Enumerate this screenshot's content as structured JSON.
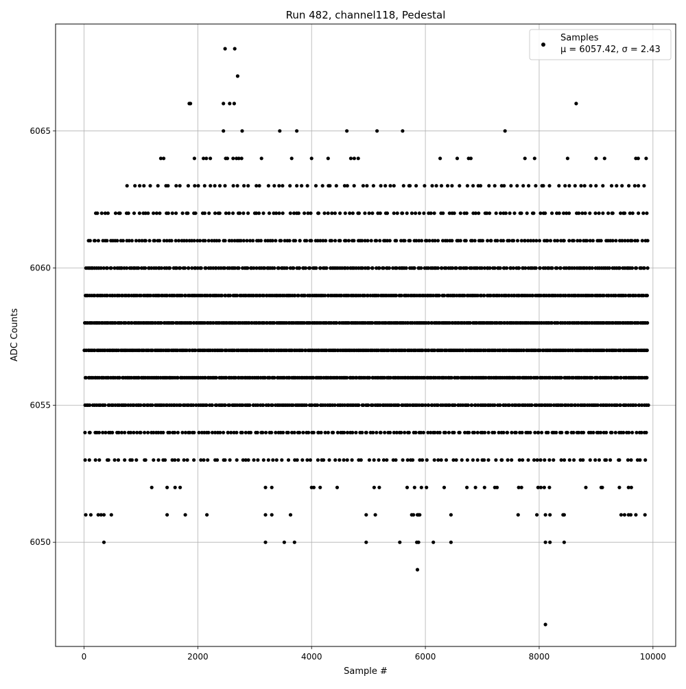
{
  "chart_data": {
    "type": "scatter",
    "title": "Run 482, channel118, Pedestal",
    "xlabel": "Sample #",
    "ylabel": "ADC Counts",
    "xlim": [
      -500,
      10400
    ],
    "ylim": [
      6046.2,
      6068.9
    ],
    "x_ticks": [
      0,
      2000,
      4000,
      6000,
      8000,
      10000
    ],
    "y_ticks": [
      6050,
      6055,
      6060,
      6065
    ],
    "grid": true,
    "legend": {
      "placement": "top-right",
      "entries": [
        {
          "label": "Samples",
          "sublabel": "μ = 6057.42, σ = 2.43"
        }
      ]
    },
    "marker_color": "#000000",
    "series": [
      {
        "name": "Samples",
        "dense_levels": [
          {
            "y": 6053,
            "x_range": [
              0,
              9900
            ],
            "count": 120
          },
          {
            "y": 6054,
            "x_range": [
              0,
              9920
            ],
            "count": 200
          },
          {
            "y": 6055,
            "x_range": [
              0,
              9920
            ],
            "count": 300
          },
          {
            "y": 6056,
            "x_range": [
              0,
              9920
            ],
            "count": 350
          },
          {
            "y": 6057,
            "x_range": [
              0,
              9920
            ],
            "count": 380
          },
          {
            "y": 6058,
            "x_range": [
              0,
              9920
            ],
            "count": 380
          },
          {
            "y": 6059,
            "x_range": [
              0,
              9920
            ],
            "count": 340
          },
          {
            "y": 6060,
            "x_range": [
              0,
              9920
            ],
            "count": 270
          },
          {
            "y": 6061,
            "x_range": [
              40,
              9920
            ],
            "count": 200
          },
          {
            "y": 6062,
            "x_range": [
              140,
              9920
            ],
            "count": 140
          },
          {
            "y": 6063,
            "x_range": [
              740,
              9900
            ],
            "count": 90
          }
        ],
        "sparse_points": [
          [
            2480,
            6068
          ],
          [
            2650,
            6068
          ],
          [
            2700,
            6067
          ],
          [
            1850,
            6066
          ],
          [
            1870,
            6066
          ],
          [
            2450,
            6066
          ],
          [
            2560,
            6066
          ],
          [
            2640,
            6066
          ],
          [
            8650,
            6066
          ],
          [
            2450,
            6065
          ],
          [
            2780,
            6065
          ],
          [
            3440,
            6065
          ],
          [
            3740,
            6065
          ],
          [
            4620,
            6065
          ],
          [
            5150,
            6065
          ],
          [
            5600,
            6065
          ],
          [
            7400,
            6065
          ],
          [
            1350,
            6064
          ],
          [
            1400,
            6064
          ],
          [
            1940,
            6064
          ],
          [
            2100,
            6064
          ],
          [
            2150,
            6064
          ],
          [
            2220,
            6064
          ],
          [
            2490,
            6064
          ],
          [
            2520,
            6064
          ],
          [
            2620,
            6064
          ],
          [
            2680,
            6064
          ],
          [
            2720,
            6064
          ],
          [
            2770,
            6064
          ],
          [
            3120,
            6064
          ],
          [
            3650,
            6064
          ],
          [
            4000,
            6064
          ],
          [
            4290,
            6064
          ],
          [
            4690,
            6064
          ],
          [
            4750,
            6064
          ],
          [
            4820,
            6064
          ],
          [
            6260,
            6064
          ],
          [
            6560,
            6064
          ],
          [
            6760,
            6064
          ],
          [
            6800,
            6064
          ],
          [
            7750,
            6064
          ],
          [
            7920,
            6064
          ],
          [
            8500,
            6064
          ],
          [
            9000,
            6064
          ],
          [
            9150,
            6064
          ],
          [
            9700,
            6064
          ],
          [
            9740,
            6064
          ],
          [
            9880,
            6064
          ],
          [
            1190,
            6052
          ],
          [
            1460,
            6052
          ],
          [
            1600,
            6052
          ],
          [
            1690,
            6052
          ],
          [
            3190,
            6052
          ],
          [
            3300,
            6052
          ],
          [
            4000,
            6052
          ],
          [
            4040,
            6052
          ],
          [
            4150,
            6052
          ],
          [
            4450,
            6052
          ],
          [
            5100,
            6052
          ],
          [
            5190,
            6052
          ],
          [
            5680,
            6052
          ],
          [
            5810,
            6052
          ],
          [
            5930,
            6052
          ],
          [
            6020,
            6052
          ],
          [
            6330,
            6052
          ],
          [
            6730,
            6052
          ],
          [
            6880,
            6052
          ],
          [
            7040,
            6052
          ],
          [
            7220,
            6052
          ],
          [
            7260,
            6052
          ],
          [
            7640,
            6052
          ],
          [
            7690,
            6052
          ],
          [
            7980,
            6052
          ],
          [
            8030,
            6052
          ],
          [
            8090,
            6052
          ],
          [
            8180,
            6052
          ],
          [
            8820,
            6052
          ],
          [
            9090,
            6052
          ],
          [
            9110,
            6052
          ],
          [
            9410,
            6052
          ],
          [
            9570,
            6052
          ],
          [
            9620,
            6052
          ],
          [
            30,
            6051
          ],
          [
            120,
            6051
          ],
          [
            250,
            6051
          ],
          [
            300,
            6051
          ],
          [
            350,
            6051
          ],
          [
            480,
            6051
          ],
          [
            1460,
            6051
          ],
          [
            1780,
            6051
          ],
          [
            2160,
            6051
          ],
          [
            3190,
            6051
          ],
          [
            3300,
            6051
          ],
          [
            3630,
            6051
          ],
          [
            4960,
            6051
          ],
          [
            5120,
            6051
          ],
          [
            5760,
            6051
          ],
          [
            5790,
            6051
          ],
          [
            5860,
            6051
          ],
          [
            5880,
            6051
          ],
          [
            5900,
            6051
          ],
          [
            6450,
            6051
          ],
          [
            7630,
            6051
          ],
          [
            7960,
            6051
          ],
          [
            8110,
            6051
          ],
          [
            8190,
            6051
          ],
          [
            8420,
            6051
          ],
          [
            8440,
            6051
          ],
          [
            9440,
            6051
          ],
          [
            9500,
            6051
          ],
          [
            9570,
            6051
          ],
          [
            9610,
            6051
          ],
          [
            9700,
            6051
          ],
          [
            9860,
            6051
          ],
          [
            350,
            6050
          ],
          [
            3190,
            6050
          ],
          [
            3520,
            6050
          ],
          [
            3700,
            6050
          ],
          [
            4960,
            6050
          ],
          [
            5550,
            6050
          ],
          [
            5850,
            6050
          ],
          [
            5880,
            6050
          ],
          [
            6140,
            6050
          ],
          [
            6450,
            6050
          ],
          [
            8110,
            6050
          ],
          [
            8190,
            6050
          ],
          [
            8440,
            6050
          ],
          [
            5860,
            6049
          ],
          [
            8110,
            6047
          ]
        ]
      }
    ]
  }
}
